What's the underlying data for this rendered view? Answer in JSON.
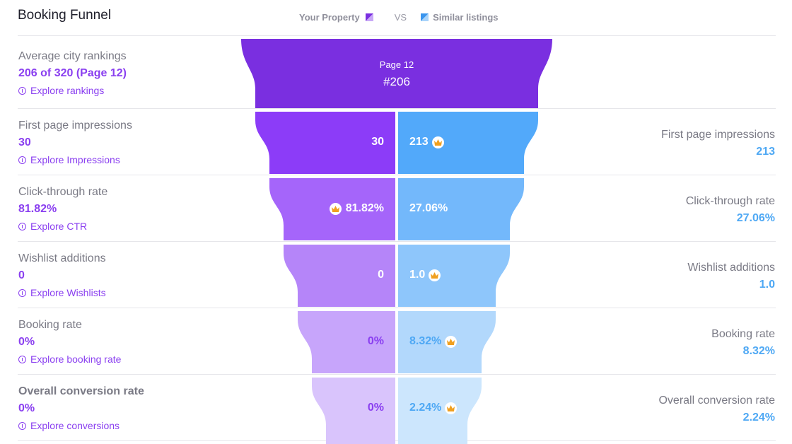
{
  "header": {
    "title": "Booking Funnel",
    "legend_property": "Your Property",
    "legend_vs": "VS",
    "legend_similar": "Similar listings"
  },
  "colors": {
    "property_accent": "#8a3ff0",
    "similar_accent": "#4ea8f4",
    "crown": "#f0a020"
  },
  "top_stage": {
    "label": "Average city rankings",
    "value": "206 of 320 (Page 12)",
    "link": "Explore rankings",
    "funnel_page": "Page 12",
    "funnel_rank": "#206"
  },
  "stages": [
    {
      "label": "First page impressions",
      "value": "30",
      "link": "Explore Impressions",
      "property_cell": "30",
      "similar_cell": "213",
      "similar_label": "First page impressions",
      "similar_value": "213",
      "winner": "similar"
    },
    {
      "label": "Click-through rate",
      "value": "81.82%",
      "link": "Explore CTR",
      "property_cell": "81.82%",
      "similar_cell": "27.06%",
      "similar_label": "Click-through rate",
      "similar_value": "27.06%",
      "winner": "property"
    },
    {
      "label": "Wishlist additions",
      "value": "0",
      "link": "Explore Wishlists",
      "property_cell": "0",
      "similar_cell": "1.0",
      "similar_label": "Wishlist additions",
      "similar_value": "1.0",
      "winner": "similar"
    },
    {
      "label": "Booking rate",
      "value": "0%",
      "link": "Explore booking rate",
      "property_cell": "0%",
      "similar_cell": "8.32%",
      "similar_label": "Booking rate",
      "similar_value": "8.32%",
      "winner": "similar"
    },
    {
      "label": "Overall conversion rate",
      "value": "0%",
      "link": "Explore conversions",
      "property_cell": "0%",
      "similar_cell": "2.24%",
      "similar_label": "Overall conversion rate",
      "similar_value": "2.24%",
      "winner": "similar"
    }
  ]
}
